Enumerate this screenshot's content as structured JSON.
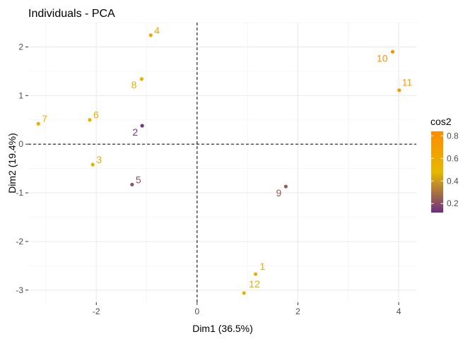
{
  "chart_data": {
    "type": "scatter",
    "title": "Individuals - PCA",
    "xlabel": "Dim1 (36.5%)",
    "ylabel": "Dim2 (19.4%)",
    "xlim": [
      -3.35,
      4.35
    ],
    "ylim": [
      -3.25,
      2.5
    ],
    "x_ticks": [
      -2,
      0,
      2,
      4
    ],
    "y_ticks": [
      -3,
      -2,
      -1,
      0,
      1,
      2
    ],
    "x_tick_labels": [
      "-2",
      "0",
      "2",
      "4"
    ],
    "y_tick_labels": [
      "-3",
      "-2",
      "-1",
      "0",
      "1",
      "2"
    ],
    "grid": true,
    "reference_lines": {
      "x": 0,
      "y": 0,
      "style": "dashed"
    },
    "points": [
      {
        "label": "1",
        "x": 1.16,
        "y": -2.67,
        "cos2": 0.55
      },
      {
        "label": "2",
        "x": -1.09,
        "y": 0.38,
        "cos2": 0.14
      },
      {
        "label": "3",
        "x": -2.07,
        "y": -0.42,
        "cos2": 0.56
      },
      {
        "label": "4",
        "x": -0.92,
        "y": 2.24,
        "cos2": 0.6
      },
      {
        "label": "5",
        "x": -1.29,
        "y": -0.83,
        "cos2": 0.22
      },
      {
        "label": "6",
        "x": -2.13,
        "y": 0.5,
        "cos2": 0.55
      },
      {
        "label": "7",
        "x": -3.15,
        "y": 0.42,
        "cos2": 0.57
      },
      {
        "label": "8",
        "x": -1.1,
        "y": 1.34,
        "cos2": 0.55
      },
      {
        "label": "9",
        "x": 1.76,
        "y": -0.87,
        "cos2": 0.24
      },
      {
        "label": "10",
        "x": 3.88,
        "y": 1.9,
        "cos2": 0.78
      },
      {
        "label": "11",
        "x": 4.01,
        "y": 1.11,
        "cos2": 0.7
      },
      {
        "label": "12",
        "x": 0.93,
        "y": -3.06,
        "cos2": 0.57
      }
    ],
    "legend": {
      "title": "cos2",
      "placement": "right",
      "range": [
        0.12,
        0.84
      ],
      "ticks": [
        0.2,
        0.4,
        0.6,
        0.8
      ],
      "tick_labels": [
        "0.2",
        "0.4",
        "0.6",
        "0.8"
      ],
      "colors": [
        "#6B2E81",
        "#E7B800",
        "#FC8C00"
      ]
    }
  }
}
